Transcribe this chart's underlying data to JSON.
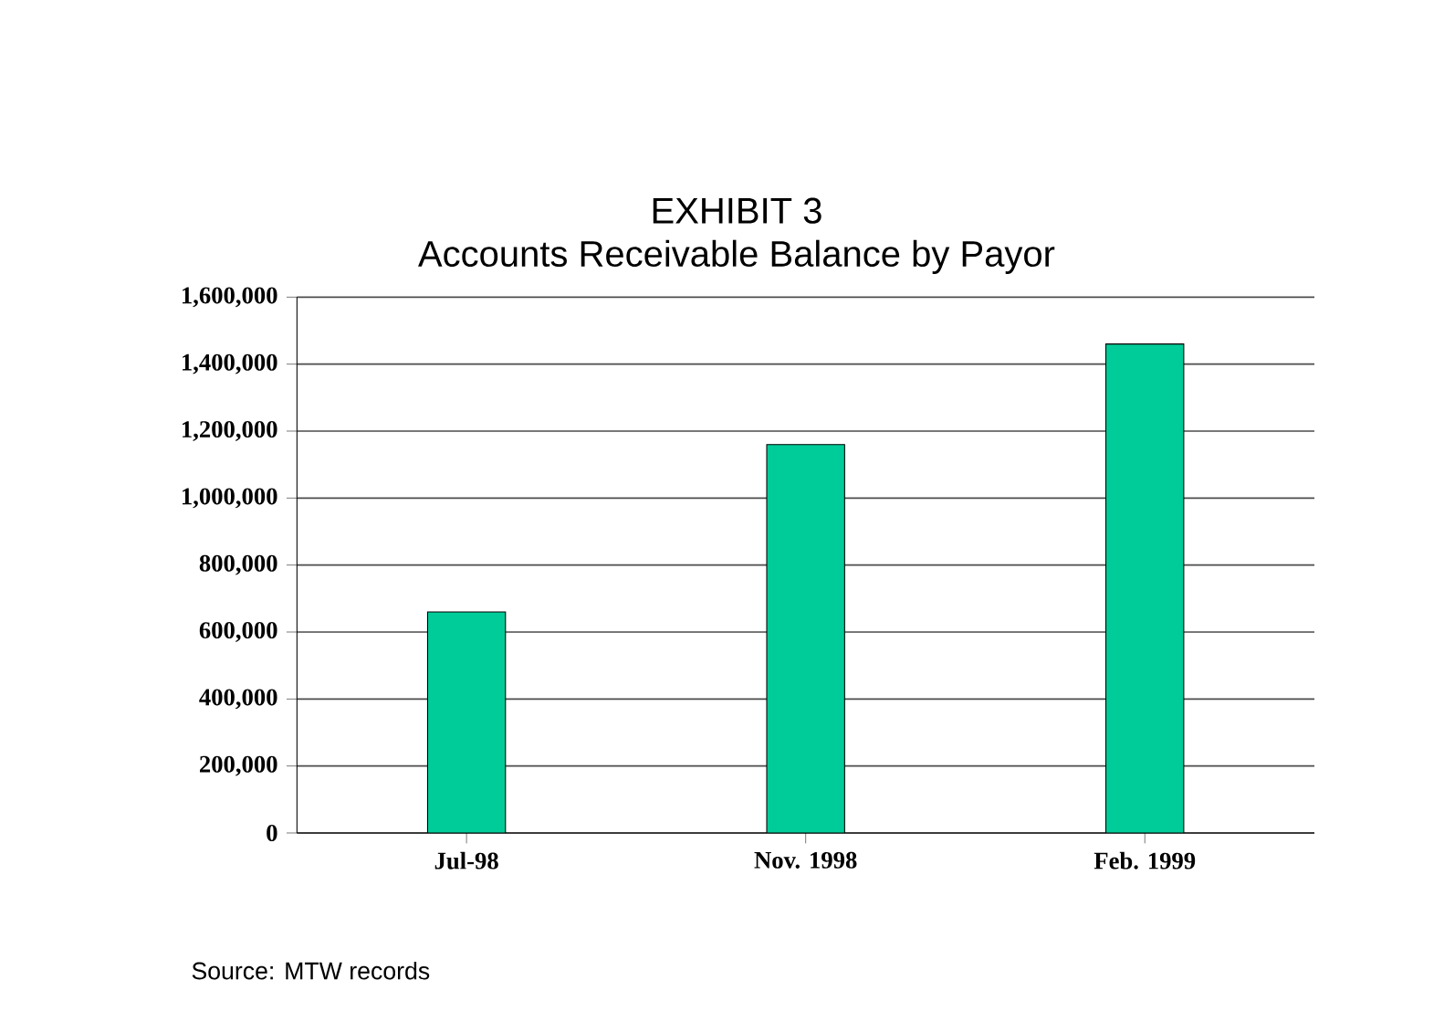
{
  "chart_data": {
    "type": "bar",
    "title": "EXHIBIT 3",
    "subtitle": "Accounts Receivable Balance by Payor",
    "categories": [
      "Jul-98",
      "Nov. 1998",
      "Feb. 1999"
    ],
    "values": [
      660000,
      1160000,
      1460000
    ],
    "color": "#00cc99",
    "ylim": [
      0,
      1600000
    ],
    "yticks": [
      {
        "value": 0,
        "label": "0"
      },
      {
        "value": 200000,
        "label": "200,000"
      },
      {
        "value": 400000,
        "label": "400,000"
      },
      {
        "value": 600000,
        "label": "600,000"
      },
      {
        "value": 800000,
        "label": "800,000"
      },
      {
        "value": 1000000,
        "label": "1,000,000"
      },
      {
        "value": 1200000,
        "label": "1,200,000"
      },
      {
        "value": 1400000,
        "label": "1,400,000"
      },
      {
        "value": 1600000,
        "label": "1,600,000"
      }
    ],
    "grid": "y",
    "annotations": [
      "Source:  MTW records"
    ]
  }
}
